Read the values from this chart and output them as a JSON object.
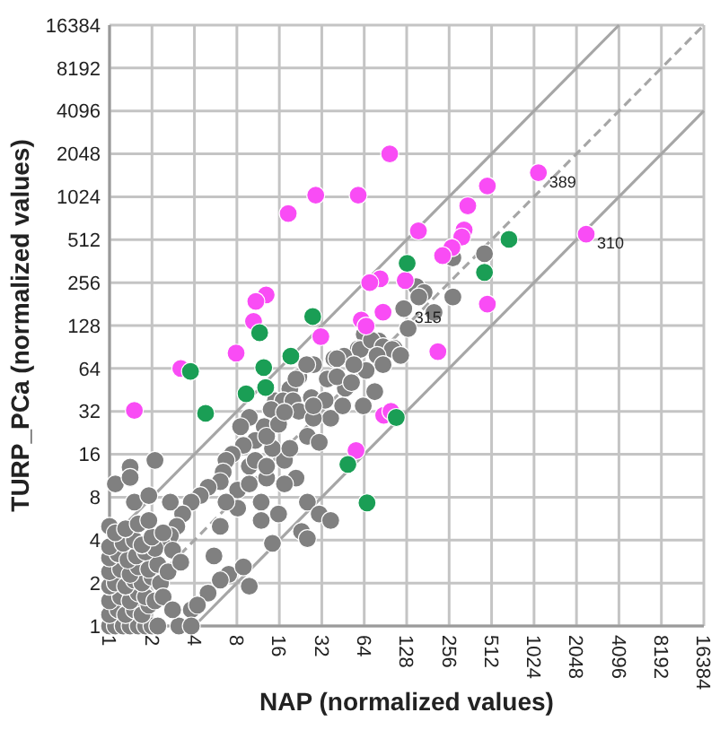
{
  "chart_data": {
    "type": "scatter",
    "xlabel": "NAP (normalized values)",
    "ylabel": "TURP_PCa (normalized values)",
    "log": "xy",
    "grid": true,
    "marker": "circle",
    "xlim": [
      1,
      16384
    ],
    "ylim": [
      1,
      16384
    ],
    "xticks": [
      1,
      2,
      4,
      8,
      16,
      32,
      64,
      128,
      256,
      512,
      1024,
      2048,
      4096,
      8192,
      16384
    ],
    "yticks": [
      1,
      2,
      4,
      8,
      16,
      32,
      64,
      128,
      256,
      512,
      1024,
      2048,
      4096,
      8192,
      16384
    ],
    "series": [
      {
        "type": "line",
        "line_style": "solid",
        "marker": "none",
        "color": "#a6a6a6",
        "x": [
          1,
          4096
        ],
        "values": [
          4,
          16384
        ]
      },
      {
        "type": "line",
        "line_style": "dashed",
        "marker": "none",
        "color": "#a6a6a6",
        "x": [
          1,
          16384
        ],
        "values": [
          1,
          16384
        ]
      },
      {
        "type": "line",
        "line_style": "solid",
        "marker": "none",
        "color": "#a6a6a6",
        "x": [
          4,
          16384
        ],
        "values": [
          1,
          4096
        ]
      },
      {
        "color": "#808080",
        "x": [
          272,
          456,
          272,
          150,
          170,
          156,
          122,
          200,
          64,
          81,
          58,
          104,
          46,
          131,
          60,
          72,
          87,
          101,
          79,
          116,
          87,
          66,
          76,
          63,
          39,
          41,
          35,
          28,
          22,
          19,
          15,
          17,
          27,
          20,
          22,
          12.5,
          14,
          9.8,
          8.5,
          10.8,
          8.9,
          7.4,
          6.7,
          6.4,
          6.1,
          5,
          4.4,
          3.8,
          3.3,
          3,
          2.7,
          2.35,
          1.1,
          1.4,
          1.4,
          2.1,
          2.7,
          1.5,
          1.9,
          1,
          25.3,
          30.7,
          37,
          21,
          17.4,
          13,
          9.8,
          11.9,
          15.8,
          23,
          25.3,
          14.3,
          11.9,
          8.1,
          6.1,
          5.5,
          7,
          8.9,
          9.8,
          6.1,
          5,
          3.8,
          3.1,
          3.8,
          4.2,
          8.1,
          9.8,
          6.7,
          17.4,
          14.3,
          19,
          13,
          15.8,
          17.4,
          10.8,
          13,
          25.3,
          30.7,
          37,
          27.9,
          45,
          33.8,
          47,
          27.9,
          21,
          25,
          41,
          52,
          54,
          1,
          1.1,
          1.25,
          1.4,
          1.6,
          1.8,
          2,
          2.2,
          1,
          1.15,
          1.3,
          1.5,
          1.7,
          1.9,
          1,
          1.2,
          1.4,
          1.6,
          1.8,
          2.1,
          1,
          1.1,
          1.3,
          1.5,
          1.7,
          2,
          2.3,
          1,
          1.2,
          1.4,
          1.6,
          1.9,
          2.2,
          1,
          1.15,
          1.35,
          1.55,
          1.8,
          2.1,
          1,
          1.25,
          1.5,
          1.7,
          2,
          1.1,
          1.3,
          1.6,
          1.9,
          2.4,
          2.8,
          2.6,
          2.4,
          2.8,
          3.2
        ],
        "values": [
          382,
          408,
          203,
          240,
          218,
          203,
          168,
          158,
          111,
          100,
          88,
          89,
          78,
          122,
          87,
          101,
          91,
          87,
          79,
          79,
          68,
          62,
          44,
          35,
          75,
          75,
          54,
          68,
          56,
          46,
          38,
          38,
          40,
          38,
          32,
          25,
          33,
          29,
          25,
          20,
          18.5,
          16,
          14.5,
          12,
          10.3,
          9.4,
          8.2,
          7.4,
          6.1,
          5,
          4.3,
          3.8,
          9.9,
          13,
          11,
          14.5,
          7.4,
          7.4,
          8.2,
          5,
          7.4,
          6.1,
          5.5,
          10.9,
          9.9,
          10.9,
          13.2,
          7.4,
          6.1,
          4.6,
          4.1,
          3.8,
          5.5,
          6.7,
          5,
          3.1,
          2.3,
          2.6,
          1.9,
          2.1,
          1.7,
          1.3,
          1,
          1,
          1.4,
          9,
          9.9,
          7.4,
          14.5,
          17.6,
          17.6,
          21.4,
          26,
          31.6,
          14.5,
          13.2,
          21.4,
          19.4,
          28.6,
          28.6,
          35,
          38.3,
          46.5,
          35,
          54,
          68,
          56,
          51,
          68,
          1,
          1,
          1,
          1,
          1,
          1,
          1,
          1,
          1.2,
          1.3,
          1.2,
          1.3,
          1.2,
          1.4,
          1.5,
          1.6,
          1.5,
          1.7,
          1.6,
          1.5,
          1.9,
          2,
          1.9,
          2.1,
          2,
          2.2,
          2,
          2.4,
          2.5,
          2.3,
          2.6,
          2.5,
          2.7,
          3,
          3.2,
          2.9,
          3.1,
          3.3,
          3.5,
          3.6,
          3.8,
          4,
          3.7,
          4.2,
          4.5,
          4.8,
          5.2,
          5.5,
          4.5,
          3.4,
          2.4,
          1.6,
          1.3,
          2.8
        ]
      },
      {
        "color": "#f94cf5",
        "x": [
          97,
          18.5,
          29,
          58,
          1100,
          478,
          2400,
          347,
          155,
          327,
          315,
          268,
          230,
          125,
          83,
          70,
          478,
          87,
          61,
          66,
          12.9,
          10.9,
          10.5,
          31.5,
          7.9,
          213,
          3.2,
          1.5,
          56,
          88,
          99
        ],
        "values": [
          2048,
          782,
          1050,
          1050,
          1510,
          1220,
          560,
          885,
          590,
          600,
          535,
          450,
          396,
          265,
          272,
          256,
          181,
          159,
          140,
          127,
          210,
          189,
          137,
          107,
          82,
          84,
          64,
          32.5,
          17,
          30,
          32
        ]
      },
      {
        "color": "#1a9e55",
        "x": [
          680,
          129,
          456,
          27.6,
          11.6,
          19.3,
          3.75,
          4.8,
          9.3,
          12.4,
          12.8,
          49,
          67,
          108
        ],
        "values": [
          515,
          350,
          302,
          148,
          114,
          78,
          61,
          31,
          42.5,
          65,
          47,
          13.6,
          7.3,
          29
        ]
      }
    ],
    "annotations": [
      {
        "text": "389",
        "x": 1100,
        "y": 1510
      },
      {
        "text": "310",
        "x": 2400,
        "y": 560
      },
      {
        "text": "315",
        "x": 122,
        "y": 168
      }
    ]
  }
}
